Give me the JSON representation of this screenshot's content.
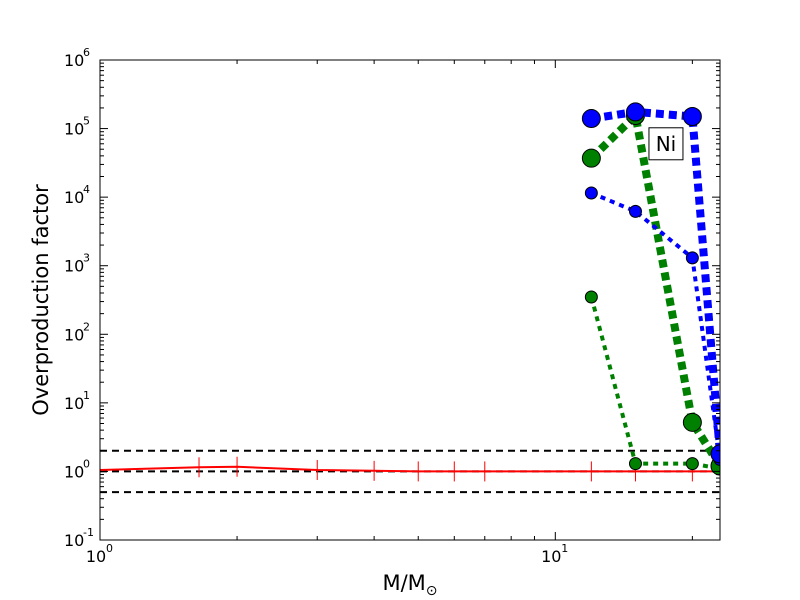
{
  "chart_data": {
    "type": "line",
    "xscale": "log",
    "yscale": "log",
    "xlim": [
      1,
      23
    ],
    "ylim": [
      0.1,
      1000000
    ],
    "xlabel": "M/M",
    "xlabel_sub": "⊙",
    "ylabel": "Overproduction factor",
    "x_ticks": [
      {
        "value": 1,
        "base": "10",
        "exp": "0"
      },
      {
        "value": 10,
        "base": "10",
        "exp": "1"
      }
    ],
    "y_ticks": [
      {
        "value": 0.1,
        "base": "10",
        "exp": "-1"
      },
      {
        "value": 1,
        "base": "10",
        "exp": "0"
      },
      {
        "value": 10,
        "base": "10",
        "exp": "1"
      },
      {
        "value": 100,
        "base": "10",
        "exp": "2"
      },
      {
        "value": 1000,
        "base": "10",
        "exp": "3"
      },
      {
        "value": 10000,
        "base": "10",
        "exp": "4"
      },
      {
        "value": 100000,
        "base": "10",
        "exp": "5"
      },
      {
        "value": 1000000,
        "base": "10",
        "exp": "6"
      }
    ],
    "reference_lines": [
      2,
      1,
      0.5
    ],
    "annotation": {
      "text": "Ni",
      "x": 17.5,
      "y": 60000
    },
    "series": [
      {
        "color": "#ff0000",
        "style": "solid",
        "marker": "tick",
        "x": [
          1,
          1.65,
          2,
          3,
          4,
          5,
          6,
          7,
          12,
          15,
          20,
          23
        ],
        "y": [
          1.05,
          1.15,
          1.17,
          1.05,
          1.02,
          1.0,
          1.0,
          1.0,
          1.0,
          1.0,
          1.0,
          1.0
        ]
      },
      {
        "color": "#008000",
        "style": "dotted",
        "weight": "thin",
        "x": [
          12,
          15,
          20,
          23
        ],
        "y": [
          350,
          1.3,
          1.3,
          1.1
        ]
      },
      {
        "color": "#008000",
        "style": "dotted",
        "weight": "thick",
        "x": [
          12,
          15,
          20,
          23
        ],
        "y": [
          37000,
          155000,
          5.2,
          1.2
        ]
      },
      {
        "color": "#0000ff",
        "style": "dotted",
        "weight": "thin",
        "x": [
          12,
          15,
          20,
          23
        ],
        "y": [
          11500,
          6200,
          1300,
          1.5
        ]
      },
      {
        "color": "#0000ff",
        "style": "dotted",
        "weight": "thick",
        "x": [
          12,
          15,
          20,
          23
        ],
        "y": [
          140000,
          175000,
          150000,
          1.8
        ]
      }
    ]
  }
}
